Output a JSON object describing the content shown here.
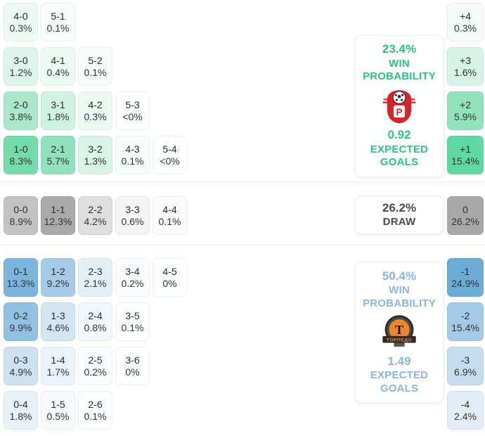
{
  "cards": {
    "home": {
      "win_pct": "23.4%",
      "win_label": "WIN PROBABILITY",
      "xg": "0.92",
      "xg_label": "EXPECTED GOALS",
      "team_initial": "P",
      "accent": "#2dc184"
    },
    "draw": {
      "pct": "26.2%",
      "label": "DRAW",
      "accent": "#4d4d4d"
    },
    "away": {
      "win_pct": "50.4%",
      "win_label": "WIN PROBABILITY",
      "xg": "1.49",
      "xg_label": "EXPECTED GOALS",
      "team_initial": "T",
      "team_name": "ТОРПЕДО",
      "accent": "#8ab5dc"
    }
  },
  "matrix": {
    "home_rows": [
      [
        {
          "score": "4-0",
          "pct": "0.3%",
          "bg": "#edfaf4"
        },
        {
          "score": "5-1",
          "pct": "0.1%",
          "bg": "#f8fdfb"
        }
      ],
      [
        {
          "score": "3-0",
          "pct": "1.2%",
          "bg": "#dcf5ea"
        },
        {
          "score": "4-1",
          "pct": "0.4%",
          "bg": "#ecfaf3"
        },
        {
          "score": "5-2",
          "pct": "0.1%",
          "bg": "#f8fdfb"
        }
      ],
      [
        {
          "score": "2-0",
          "pct": "3.8%",
          "bg": "#a9e8cd"
        },
        {
          "score": "3-1",
          "pct": "1.8%",
          "bg": "#cff2e2"
        },
        {
          "score": "4-2",
          "pct": "0.3%",
          "bg": "#edfaf4"
        },
        {
          "score": "5-3",
          "pct": "<0%",
          "bg": "#fdfefe"
        }
      ],
      [
        {
          "score": "1-0",
          "pct": "8.3%",
          "bg": "#73dcab"
        },
        {
          "score": "2-1",
          "pct": "5.7%",
          "bg": "#8fe2bd"
        },
        {
          "score": "3-2",
          "pct": "1.3%",
          "bg": "#d8f4e7"
        },
        {
          "score": "4-3",
          "pct": "0.1%",
          "bg": "#f8fdfb"
        },
        {
          "score": "5-4",
          "pct": "<0%",
          "bg": "#fdfefe"
        }
      ]
    ],
    "draw_rows": [
      [
        {
          "score": "0-0",
          "pct": "8.9%",
          "bg": "#c3c3c3"
        },
        {
          "score": "1-1",
          "pct": "12.3%",
          "bg": "#aaaaaa"
        },
        {
          "score": "2-2",
          "pct": "4.2%",
          "bg": "#dedede"
        },
        {
          "score": "3-3",
          "pct": "0.6%",
          "bg": "#f4f4f4"
        },
        {
          "score": "4-4",
          "pct": "0.1%",
          "bg": "#fbfbfb"
        }
      ]
    ],
    "away_rows": [
      [
        {
          "score": "0-1",
          "pct": "13.3%",
          "bg": "#7cb6de"
        },
        {
          "score": "1-2",
          "pct": "9.2%",
          "bg": "#a5cbe9"
        },
        {
          "score": "2-3",
          "pct": "2.1%",
          "bg": "#e3eef7"
        },
        {
          "score": "3-4",
          "pct": "0.2%",
          "bg": "#fafcfe"
        },
        {
          "score": "4-5",
          "pct": "0%",
          "bg": "#fdfefe"
        }
      ],
      [
        {
          "score": "0-2",
          "pct": "9.9%",
          "bg": "#92c1e4"
        },
        {
          "score": "1-3",
          "pct": "4.6%",
          "bg": "#d2e5f3"
        },
        {
          "score": "2-4",
          "pct": "0.8%",
          "bg": "#f2f7fc"
        },
        {
          "score": "3-5",
          "pct": "0.1%",
          "bg": "#fbfdfe"
        }
      ],
      [
        {
          "score": "0-3",
          "pct": "4.9%",
          "bg": "#cce1f2"
        },
        {
          "score": "1-4",
          "pct": "1.7%",
          "bg": "#eaf2fa"
        },
        {
          "score": "2-5",
          "pct": "0.2%",
          "bg": "#fafcfe"
        },
        {
          "score": "3-6",
          "pct": "0%",
          "bg": "#fdfefe"
        }
      ],
      [
        {
          "score": "0-4",
          "pct": "1.8%",
          "bg": "#e8f1f9"
        },
        {
          "score": "1-5",
          "pct": "0.5%",
          "bg": "#f6fafd"
        },
        {
          "score": "2-6",
          "pct": "0.1%",
          "bg": "#fbfdfe"
        }
      ]
    ]
  },
  "diffs": {
    "home": [
      {
        "diff": "+4",
        "pct": "0.3%",
        "bg": "#f2fbf7"
      },
      {
        "diff": "+3",
        "pct": "1.6%",
        "bg": "#d5f4e6"
      },
      {
        "diff": "+2",
        "pct": "5.9%",
        "bg": "#90e3bd"
      },
      {
        "diff": "+1",
        "pct": "15.4%",
        "bg": "#5ed9a1"
      }
    ],
    "draw": [
      {
        "diff": "0",
        "pct": "26.2%",
        "bg": "#a8a8a8"
      }
    ],
    "away": [
      {
        "diff": "-1",
        "pct": "24.9%",
        "bg": "#6cadd8"
      },
      {
        "diff": "-2",
        "pct": "15.4%",
        "bg": "#a4cae8"
      },
      {
        "diff": "-3",
        "pct": "6.9%",
        "bg": "#c5ddf0"
      },
      {
        "diff": "-4",
        "pct": "2.4%",
        "bg": "#e0edf7"
      }
    ]
  }
}
